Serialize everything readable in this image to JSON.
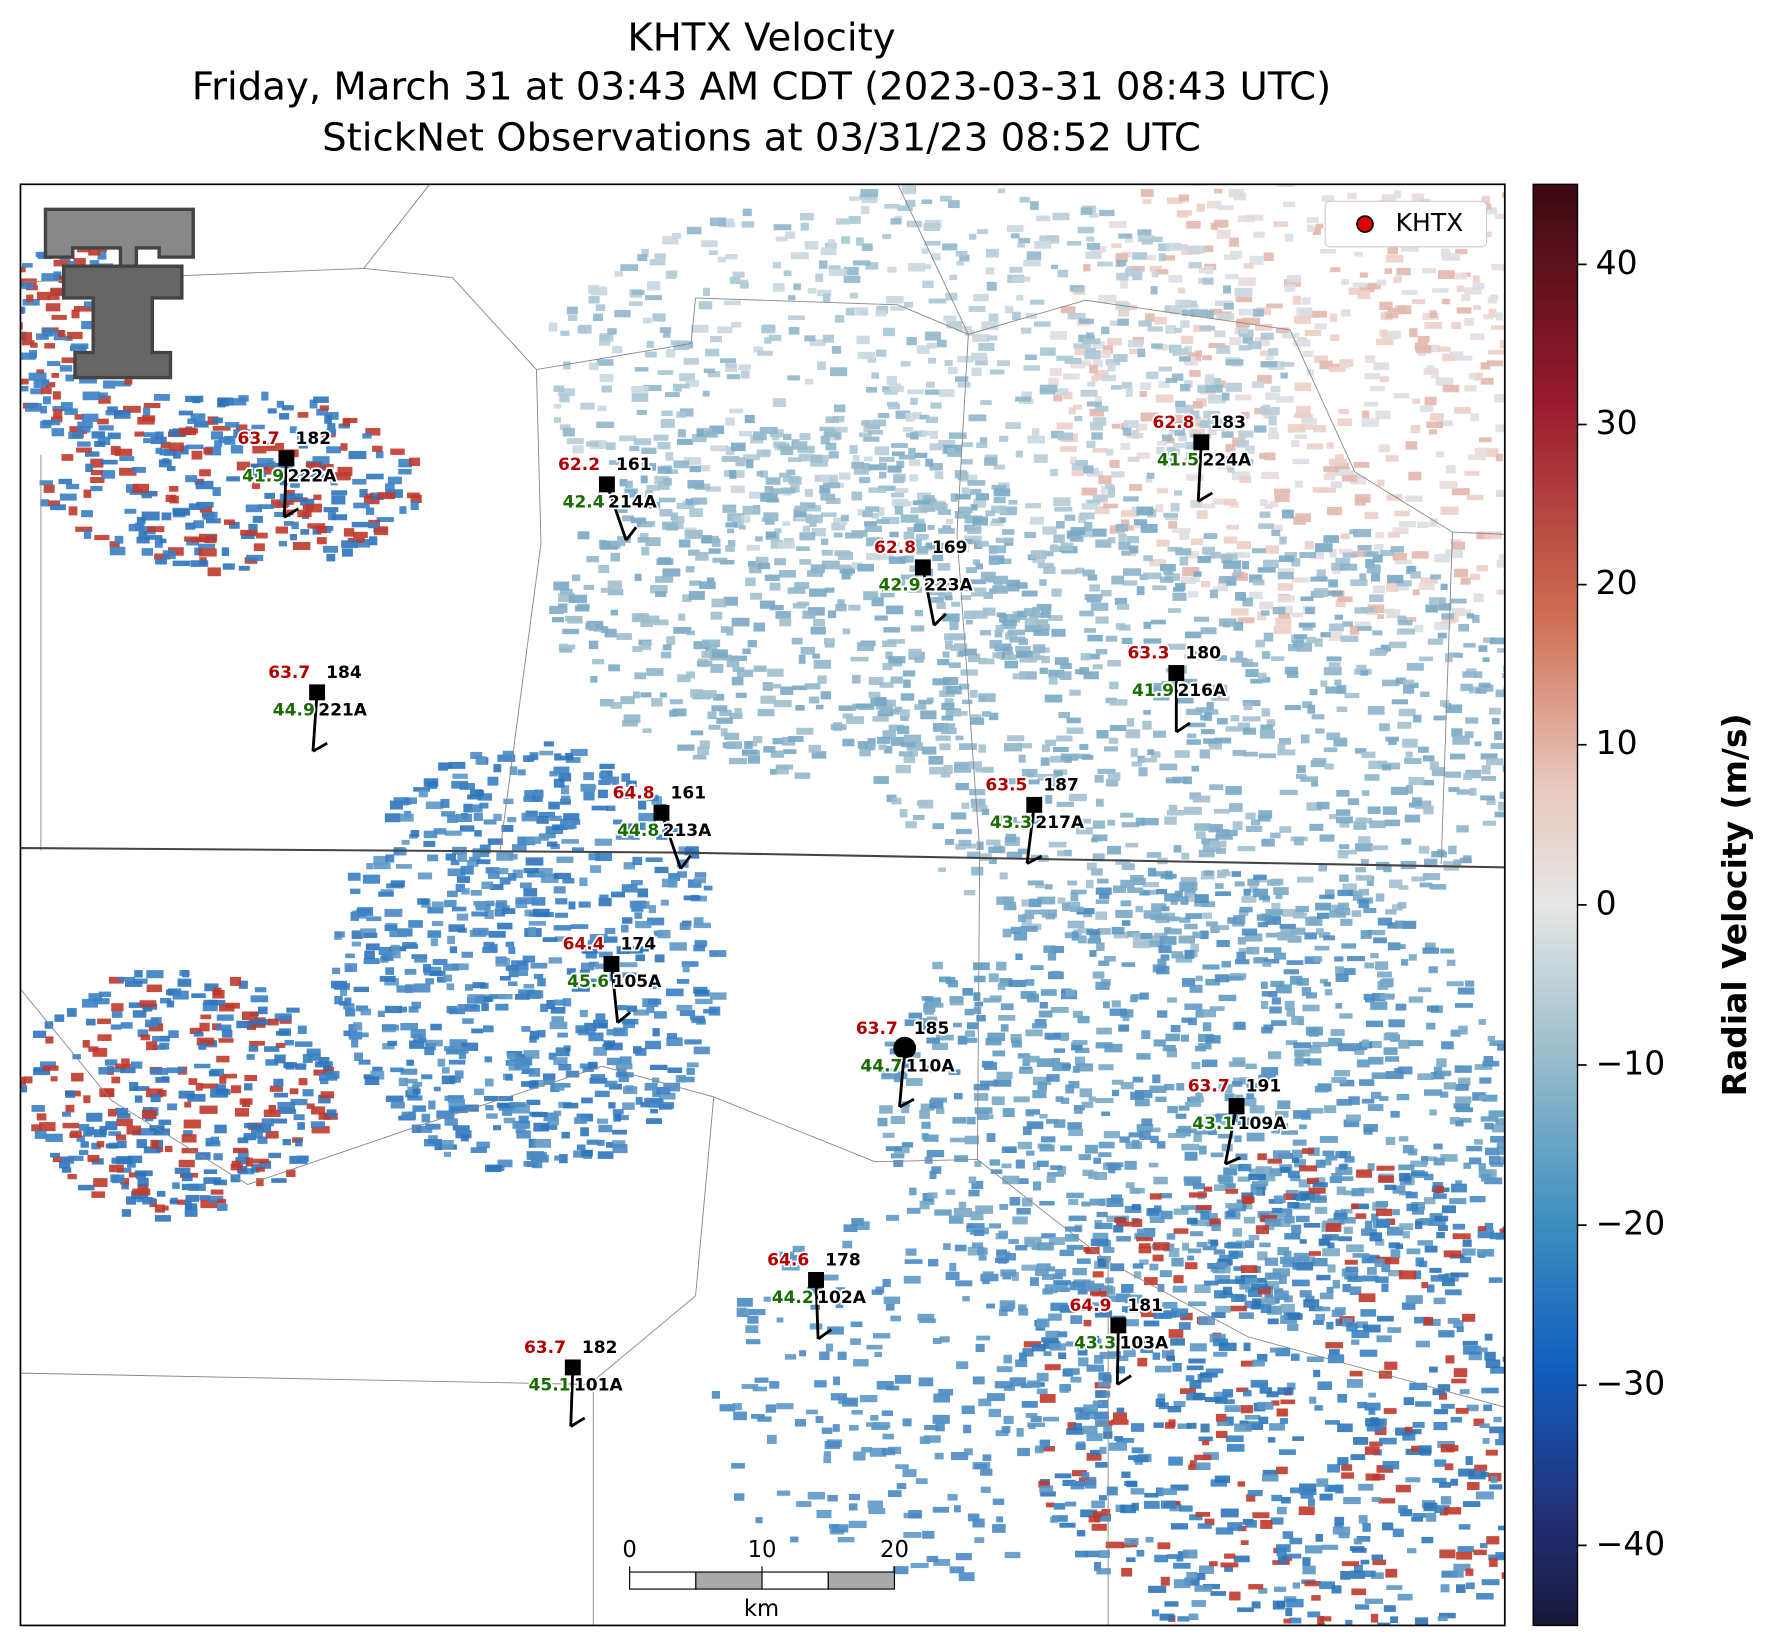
{
  "title": [
    "KHTX Velocity",
    "Friday, March 31 at 03:43 AM CDT (2023-03-31 08:43 UTC)",
    "StickNet Observations at 03/31/23 08:52 UTC"
  ],
  "legend": {
    "label": "KHTX"
  },
  "stations": [
    {
      "id": "222A",
      "temperature": 63.7,
      "direction": 182,
      "dewpoint": 41.9
    },
    {
      "id": "214A",
      "temperature": 62.2,
      "direction": 161,
      "dewpoint": 42.4
    },
    {
      "id": "224A",
      "temperature": 62.8,
      "direction": 183,
      "dewpoint": 41.5
    },
    {
      "id": "223A",
      "temperature": 62.8,
      "direction": 169,
      "dewpoint": 42.9
    },
    {
      "id": "221A",
      "temperature": 63.7,
      "direction": 184,
      "dewpoint": 44.9
    },
    {
      "id": "216A",
      "temperature": 63.3,
      "direction": 180,
      "dewpoint": 41.9
    },
    {
      "id": "213A",
      "temperature": 64.8,
      "direction": 161,
      "dewpoint": 44.8
    },
    {
      "id": "217A",
      "temperature": 63.5,
      "direction": 187,
      "dewpoint": 43.3
    },
    {
      "id": "105A",
      "temperature": 64.4,
      "direction": 174,
      "dewpoint": 45.6
    },
    {
      "id": "110A",
      "temperature": 63.7,
      "direction": 185,
      "dewpoint": 44.7
    },
    {
      "id": "109A",
      "temperature": 63.7,
      "direction": 191,
      "dewpoint": 43.1
    },
    {
      "id": "102A",
      "temperature": 64.6,
      "direction": 178,
      "dewpoint": 44.2
    },
    {
      "id": "103A",
      "temperature": 64.9,
      "direction": 181,
      "dewpoint": 43.3
    },
    {
      "id": "101A",
      "temperature": 63.7,
      "direction": 182,
      "dewpoint": 45.1
    }
  ],
  "colorbar": {
    "label": "Radial Velocity (m/s)",
    "lim": [
      -45,
      45
    ],
    "ticks": [
      40,
      30,
      20,
      10,
      0,
      {
        "value": -10,
        "label": "−10"
      },
      {
        "value": -20,
        "label": "−20"
      },
      {
        "value": -30,
        "label": "−30"
      },
      {
        "value": -40,
        "label": "−40"
      }
    ]
  },
  "scale_bar": {
    "ticks": [
      0,
      10,
      20
    ],
    "unit": "km"
  }
}
